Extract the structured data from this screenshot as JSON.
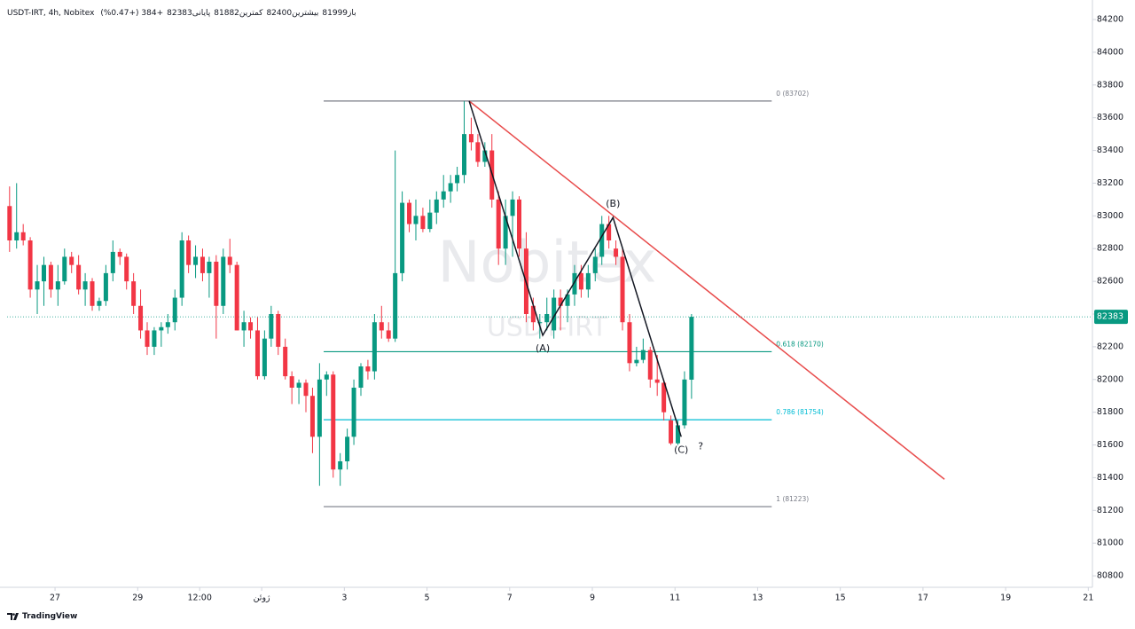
{
  "chart_data": {
    "type": "candlestick",
    "title": "USDT-IRT, 4h, Nobitex",
    "ohlc_legend": [
      "باز81999",
      "بیشترین82400",
      "کمترین81882",
      "پایانی82383",
      "+384 (+0.47%)"
    ],
    "x": [
      -1.1,
      -0.93,
      -0.77,
      -0.6,
      -0.43,
      -0.27,
      -0.1,
      0.07,
      0.23,
      0.4,
      0.57,
      0.73,
      0.9,
      1.07,
      1.23,
      1.4,
      1.57,
      1.73,
      1.9,
      2.07,
      2.23,
      2.4,
      2.57,
      2.73,
      2.9,
      3.07,
      3.23,
      3.4,
      3.57,
      3.73,
      3.9,
      4.07,
      4.23,
      4.4,
      4.57,
      4.73,
      4.9,
      5.07,
      5.23,
      5.4,
      5.57,
      5.73,
      5.9,
      6.07,
      6.23,
      6.4,
      6.57,
      6.73,
      6.9,
      7.07,
      7.23,
      7.4,
      7.57,
      7.73,
      7.9,
      8.07,
      8.23,
      8.4,
      8.57,
      8.73,
      8.9,
      9.07,
      9.23,
      9.4,
      9.57,
      9.73,
      9.9,
      10.07,
      10.23,
      10.4,
      10.57,
      10.73,
      10.9,
      11.07,
      11.23,
      11.4,
      11.57,
      11.73,
      11.9,
      12.07,
      12.23,
      12.4,
      12.57,
      12.73,
      12.9,
      13.07,
      13.23,
      13.4,
      13.57,
      13.73,
      13.9,
      14.07,
      14.23,
      14.4,
      14.57,
      14.73,
      14.9,
      15.07,
      15.23,
      15.4
    ],
    "open": [
      83060,
      82850,
      82900,
      82850,
      82550,
      82600,
      82700,
      82550,
      82600,
      82750,
      82700,
      82550,
      82600,
      82450,
      82480,
      82650,
      82780,
      82750,
      82600,
      82450,
      82300,
      82200,
      82300,
      82320,
      82350,
      82500,
      82850,
      82700,
      82750,
      82650,
      82720,
      82450,
      82750,
      82700,
      82300,
      82350,
      82300,
      82020,
      82250,
      82400,
      82200,
      82020,
      81950,
      81980,
      81900,
      81650,
      82000,
      82030,
      81450,
      81500,
      81650,
      81950,
      82080,
      82050,
      82350,
      82300,
      82250,
      82650,
      83080,
      82950,
      83000,
      82920,
      83020,
      83100,
      83150,
      83200,
      83250,
      83500,
      83450,
      83330,
      83400,
      83100,
      82800,
      83000,
      83100,
      82800,
      82450,
      82350,
      82350,
      82300,
      82500,
      82450,
      82520,
      82650,
      82550,
      82650,
      82750,
      82950,
      82800,
      82750,
      82350,
      82100,
      82120,
      82180,
      82000,
      81980,
      81750,
      81610,
      81720,
      81999
    ],
    "high": [
      83180,
      83200,
      82950,
      82870,
      82700,
      82750,
      82720,
      82700,
      82800,
      82780,
      82760,
      82650,
      82620,
      82500,
      82700,
      82850,
      82800,
      82770,
      82650,
      82550,
      82350,
      82320,
      82350,
      82400,
      82550,
      82900,
      82880,
      82820,
      82800,
      82750,
      82760,
      82800,
      82860,
      82720,
      82420,
      82380,
      82380,
      82300,
      82450,
      82420,
      82250,
      82050,
      82000,
      82000,
      81950,
      82100,
      82050,
      82050,
      81550,
      81700,
      82000,
      82100,
      82120,
      82400,
      82450,
      82350,
      83400,
      83150,
      83100,
      83100,
      83050,
      83100,
      83150,
      83250,
      83250,
      83300,
      83702,
      83600,
      83500,
      83450,
      83500,
      83150,
      83100,
      83150,
      83120,
      82900,
      82500,
      82400,
      82500,
      82550,
      82550,
      82550,
      82700,
      82700,
      82700,
      82800,
      83000,
      83000,
      82850,
      82800,
      82400,
      82200,
      82250,
      82200,
      82150,
      82000,
      81780,
      81750,
      82050,
      82400
    ],
    "low": [
      82780,
      82800,
      82820,
      82500,
      82400,
      82450,
      82500,
      82450,
      82580,
      82650,
      82520,
      82450,
      82420,
      82420,
      82450,
      82600,
      82700,
      82550,
      82400,
      82250,
      82150,
      82150,
      82200,
      82280,
      82300,
      82450,
      82650,
      82620,
      82600,
      82500,
      82250,
      82400,
      82650,
      82300,
      82200,
      82250,
      82000,
      82000,
      82200,
      82150,
      82000,
      81850,
      81850,
      81800,
      81550,
      81350,
      81900,
      81400,
      81350,
      81450,
      81600,
      81900,
      82000,
      82000,
      82250,
      82230,
      82230,
      82600,
      82900,
      82850,
      82900,
      82900,
      82950,
      83050,
      83080,
      83150,
      83200,
      83400,
      83300,
      83300,
      83050,
      82700,
      82700,
      82750,
      82750,
      82350,
      82300,
      82250,
      82300,
      82250,
      82300,
      82350,
      82450,
      82500,
      82500,
      82600,
      82700,
      82800,
      82700,
      82300,
      82050,
      82080,
      82100,
      81950,
      81900,
      81750,
      81600,
      81600,
      81700,
      81882
    ],
    "close": [
      82850,
      82900,
      82850,
      82550,
      82600,
      82700,
      82550,
      82600,
      82750,
      82700,
      82550,
      82600,
      82450,
      82480,
      82650,
      82780,
      82750,
      82600,
      82450,
      82300,
      82200,
      82300,
      82320,
      82350,
      82500,
      82850,
      82700,
      82750,
      82650,
      82720,
      82450,
      82750,
      82700,
      82300,
      82350,
      82300,
      82020,
      82250,
      82400,
      82200,
      82020,
      81950,
      81980,
      81900,
      81650,
      82000,
      82030,
      81450,
      81500,
      81650,
      81950,
      82080,
      82050,
      82350,
      82300,
      82250,
      82650,
      83080,
      82950,
      83000,
      82920,
      83020,
      83100,
      83150,
      83200,
      83250,
      83500,
      83450,
      83330,
      83400,
      83100,
      82800,
      83000,
      83100,
      82800,
      82400,
      82350,
      82350,
      82400,
      82500,
      82450,
      82520,
      82650,
      82550,
      82650,
      82750,
      82950,
      82850,
      82750,
      82350,
      82100,
      82120,
      82180,
      82000,
      81980,
      81800,
      81610,
      81720,
      82000,
      82383
    ],
    "up_color": "#089981",
    "down_color": "#f23645",
    "xlim": [
      -1.16,
      25.1
    ],
    "ylim": [
      80730,
      84276
    ],
    "xticks": [
      {
        "value": 0,
        "label": "27"
      },
      {
        "value": 2,
        "label": "29"
      },
      {
        "value": 3.5,
        "label": "12:00"
      },
      {
        "value": 5,
        "label": "ژوئن"
      },
      {
        "value": 7,
        "label": "3"
      },
      {
        "value": 9,
        "label": "5"
      },
      {
        "value": 11,
        "label": "7"
      },
      {
        "value": 13,
        "label": "9"
      },
      {
        "value": 15,
        "label": "11"
      },
      {
        "value": 17,
        "label": "13"
      },
      {
        "value": 19,
        "label": "15"
      },
      {
        "value": 21,
        "label": "17"
      },
      {
        "value": 23,
        "label": "19"
      },
      {
        "value": 25,
        "label": "21"
      }
    ],
    "yticks": [
      80800,
      81000,
      81200,
      81400,
      81600,
      81800,
      82000,
      82200,
      82400,
      82600,
      82800,
      83000,
      83200,
      83400,
      83600,
      83800,
      84000,
      84200
    ],
    "last_price": {
      "value": 82383,
      "color": "#089981"
    },
    "fib_levels": [
      {
        "price": 83702,
        "label": "0 (83702)",
        "color": "#787b86"
      },
      {
        "price": 82170,
        "label": "0.618 (82170)",
        "color": "#089981"
      },
      {
        "price": 81754,
        "label": "0.786 (81754)",
        "color": "#00bcd4"
      },
      {
        "price": 81223,
        "label": "1 (81223)",
        "color": "#787b86"
      }
    ],
    "fib_x": [
      6.5,
      17.34
    ],
    "trend_line": {
      "x": [
        10.02,
        21.52
      ],
      "y": [
        83702,
        81390
      ],
      "color": "#e84b4b"
    },
    "waves": {
      "x": [
        10.02,
        11.8,
        13.5,
        15.15
      ],
      "y": [
        83702,
        82270,
        82990,
        81650
      ],
      "labels": [
        null,
        "(A)",
        "(B)",
        "(C)"
      ],
      "color": "#131722"
    },
    "annotations": [
      {
        "text": "?",
        "x": 15.62,
        "y": 81590
      }
    ],
    "watermark": [
      "Nobitex",
      "USDT-IRT"
    ]
  },
  "footer": {
    "brand": "TradingView"
  }
}
